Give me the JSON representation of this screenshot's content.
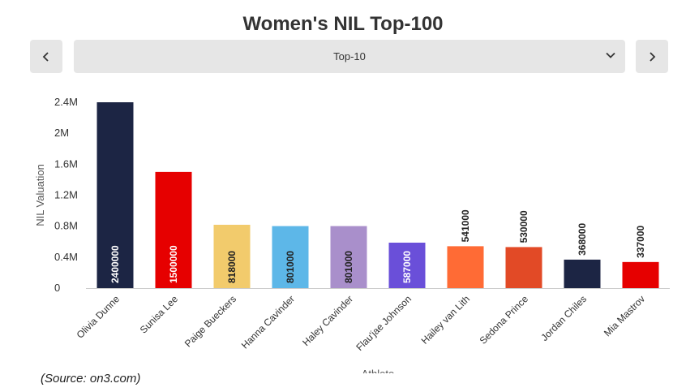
{
  "header": {
    "title": "Women's NIL Top-100"
  },
  "controls": {
    "prev_icon": "chevron-left-icon",
    "next_icon": "chevron-right-icon",
    "select_value": "Top-10",
    "select_icon": "chevron-down-icon"
  },
  "footer": {
    "source": "(Source: on3.com)"
  },
  "chart_data": {
    "type": "bar",
    "title": "",
    "xlabel": "Athlete",
    "ylabel": "NIL Valuation",
    "ylim": [
      0,
      2400000
    ],
    "yticks": [
      {
        "value": 0,
        "label": "0"
      },
      {
        "value": 400000,
        "label": "0.4M"
      },
      {
        "value": 800000,
        "label": "0.8M"
      },
      {
        "value": 1200000,
        "label": "1.2M"
      },
      {
        "value": 1600000,
        "label": "1.6M"
      },
      {
        "value": 2000000,
        "label": "2M"
      },
      {
        "value": 2400000,
        "label": "2.4M"
      }
    ],
    "grid": false,
    "categories": [
      "Olivia Dunne",
      "Sunisa Lee",
      "Paige Bueckers",
      "Hanna Cavinder",
      "Haley Cavinder",
      "Flau'jae Johnson",
      "Hailey van Lith",
      "Sedona Prince",
      "Jordan Chiles",
      "Mia Mastrov"
    ],
    "values": [
      2400000,
      1500000,
      818000,
      801000,
      801000,
      587000,
      541000,
      530000,
      368000,
      337000
    ],
    "colors": [
      "#1c2544",
      "#e60000",
      "#f2cb6c",
      "#5db7e8",
      "#a98fcb",
      "#6a4fd9",
      "#ff6b35",
      "#e24a26",
      "#1c2544",
      "#e60000"
    ],
    "label_colors": [
      "#ffffff",
      "#ffffff",
      "#222222",
      "#222222",
      "#222222",
      "#ffffff",
      "#222222",
      "#222222",
      "#222222",
      "#222222"
    ],
    "label_position": [
      "inside",
      "inside",
      "inside",
      "inside",
      "inside",
      "inside",
      "outside",
      "outside",
      "outside",
      "outside"
    ]
  }
}
